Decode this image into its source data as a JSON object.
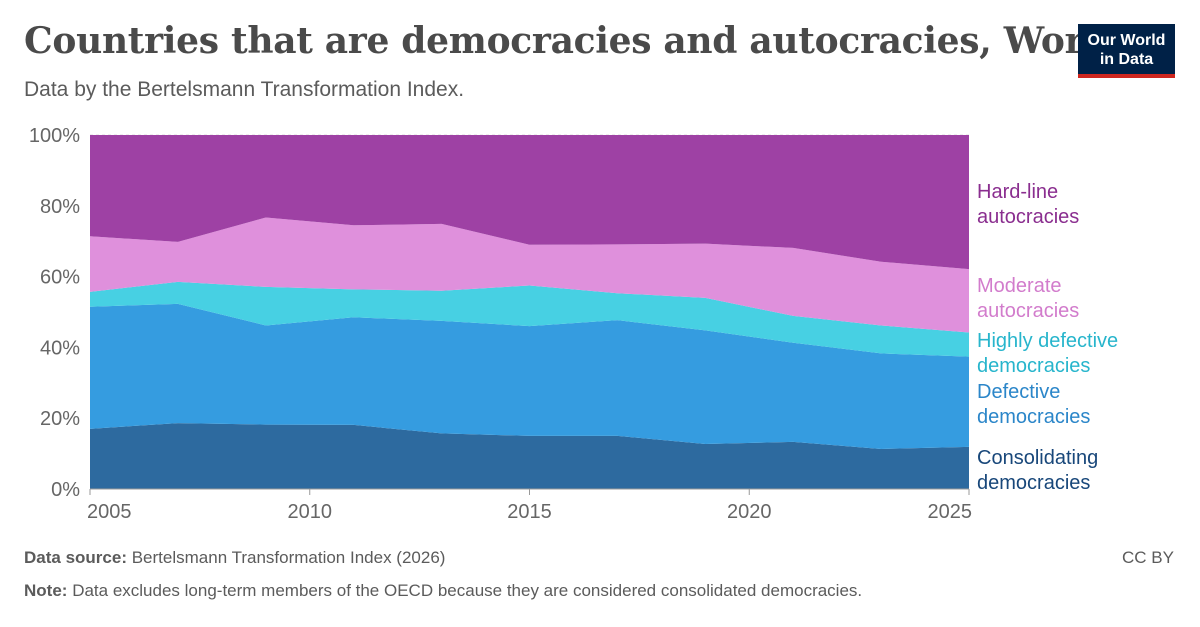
{
  "header": {
    "title": "Countries that are democracies and autocracies, World",
    "subtitle": "Data by the Bertelsmann Transformation Index.",
    "logo_line1": "Our World",
    "logo_line2": "in Data"
  },
  "footer": {
    "source_label": "Data source:",
    "source_text": "Bertelsmann Transformation Index (2026)",
    "note_label": "Note:",
    "note_text": "Data excludes long-term members of the OECD because they are considered consolidated democracies.",
    "license": "CC BY"
  },
  "chart_data": {
    "type": "area",
    "stacked": true,
    "x": [
      2005,
      2007,
      2009,
      2011,
      2013,
      2015,
      2017,
      2019,
      2021,
      2023,
      2025
    ],
    "xlim": [
      2005,
      2025
    ],
    "ylim": [
      0,
      100
    ],
    "yticks": [
      "0%",
      "20%",
      "40%",
      "60%",
      "80%",
      "100%"
    ],
    "ytick_values": [
      0,
      20,
      40,
      60,
      80,
      100
    ],
    "xticks": [
      "2005",
      "2010",
      "2015",
      "2020",
      "2025"
    ],
    "xtick_values": [
      2005,
      2010,
      2015,
      2020,
      2025
    ],
    "grid": "horizontal dashed",
    "legend": "right, labels aligned to series",
    "series": [
      {
        "name": "Consolidating democracies",
        "label_lines": [
          "Consolidating",
          "democracies"
        ],
        "color": "#2d6a9f",
        "label_color": "#18477a",
        "values": [
          17,
          18.6,
          18.2,
          18.1,
          15.7,
          15,
          15,
          12.7,
          13.3,
          11.3,
          11.9
        ]
      },
      {
        "name": "Defective democracies",
        "label_lines": [
          "Defective",
          "democracies"
        ],
        "color": "#359ce0",
        "label_color": "#2b86c9",
        "values": [
          34.5,
          33.7,
          28,
          30.4,
          31.8,
          31,
          32.7,
          32.1,
          28,
          27,
          25.5
        ]
      },
      {
        "name": "Highly defective democracies",
        "label_lines": [
          "Highly defective",
          "democracies"
        ],
        "color": "#47d0e3",
        "label_color": "#27b5cc",
        "values": [
          4.2,
          6.2,
          10.9,
          7.9,
          8.5,
          11.5,
          7.6,
          9.2,
          7.6,
          7.9,
          6.8
        ]
      },
      {
        "name": "Moderate autocracies",
        "label_lines": [
          "Moderate",
          "autocracies"
        ],
        "color": "#df90dc",
        "label_color": "#d27ccc",
        "values": [
          15.7,
          11.3,
          19.6,
          18.1,
          18.9,
          11.5,
          13.8,
          15.3,
          19.2,
          18,
          17.9
        ]
      },
      {
        "name": "Hard-line autocracies",
        "label_lines": [
          "Hard-line",
          "autocracies"
        ],
        "color": "#9e41a4",
        "label_color": "#8a2e8f",
        "values": [
          28.6,
          30.2,
          23.3,
          25.5,
          25.1,
          31,
          30.9,
          30.7,
          31.9,
          35.8,
          37.9
        ]
      }
    ]
  }
}
